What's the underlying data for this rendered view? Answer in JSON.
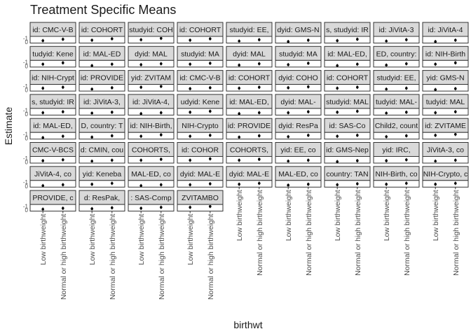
{
  "chart_data": {
    "type": "scatter",
    "title": "Treatment Specific Means",
    "xlabel": "birthwt",
    "ylabel": "Estimate",
    "categories": [
      "Low birthweight",
      "Normal or high birthweight"
    ],
    "y_tick_labels": [
      "-1",
      "0"
    ],
    "grid": false,
    "legend": "none",
    "facet_rows": 8,
    "facet_cols": 9,
    "panels": [
      {
        "strip": "id: CMC-V-B",
        "values": [
          -0.7,
          -0.4
        ]
      },
      {
        "strip": "id: COHORT",
        "values": [
          -0.6,
          -0.3
        ]
      },
      {
        "strip": "studyid: COH",
        "values": [
          -0.5,
          -0.2
        ]
      },
      {
        "strip": "id: COHORT",
        "values": [
          -0.6,
          -0.3
        ]
      },
      {
        "strip": "studyid: EE,",
        "values": [
          -0.8,
          -0.5
        ]
      },
      {
        "strip": "dyid: GMS-N",
        "values": [
          -0.9,
          -0.6
        ]
      },
      {
        "strip": "s, studyid: IR",
        "values": [
          -0.7,
          -0.4
        ]
      },
      {
        "strip": "id: JiVitA-3",
        "values": [
          -0.8,
          -0.5
        ]
      },
      {
        "strip": "id: JiVitA-4",
        "values": [
          -0.9,
          -0.6
        ]
      },
      {
        "strip": "tudyid: Kene",
        "values": [
          -0.6,
          -0.3
        ]
      },
      {
        "strip": "id: MAL-ED",
        "values": [
          -0.9,
          -0.6
        ]
      },
      {
        "strip": "dyid: MAL",
        "values": [
          -0.7,
          -0.5
        ]
      },
      {
        "strip": "studyid: MA",
        "values": [
          -0.6,
          -0.4
        ]
      },
      {
        "strip": "dyid: MAL",
        "values": [
          -0.8,
          -0.5
        ]
      },
      {
        "strip": "studyid: MA",
        "values": [
          -0.7,
          -0.4
        ]
      },
      {
        "strip": "id: MAL-ED,",
        "values": [
          -0.9,
          -0.6
        ]
      },
      {
        "strip": "ED, country:",
        "values": [
          -0.8,
          -0.5
        ]
      },
      {
        "strip": "id: NIH-Birth",
        "values": [
          -0.6,
          -0.3
        ]
      },
      {
        "strip": "id: NIH-Crypt",
        "values": [
          -0.6,
          -0.4
        ]
      },
      {
        "strip": "id: PROVIDE",
        "values": [
          -0.8,
          -0.5
        ]
      },
      {
        "strip": "yid: ZVITAM",
        "values": [
          -0.4,
          -0.2
        ]
      },
      {
        "strip": "id: CMC-V-B",
        "values": [
          -0.7,
          -0.5
        ]
      },
      {
        "strip": "id: COHORT",
        "values": [
          -0.6,
          -0.4
        ]
      },
      {
        "strip": "dyid: COHO",
        "values": [
          -0.5,
          -0.3
        ]
      },
      {
        "strip": "id: COHORT",
        "values": [
          -0.6,
          -0.4
        ]
      },
      {
        "strip": "studyid: EE,",
        "values": [
          -0.8,
          -0.6
        ]
      },
      {
        "strip": "yid: GMS-N",
        "values": [
          -0.9,
          -0.7
        ]
      },
      {
        "strip": "s, studyid: IR",
        "values": [
          -0.7,
          -0.5
        ]
      },
      {
        "strip": "id: JiVitA-3,",
        "values": [
          -0.8,
          -0.6
        ]
      },
      {
        "strip": "id: JiVitA-4,",
        "values": [
          -0.9,
          -0.7
        ]
      },
      {
        "strip": "udyid: Kene",
        "values": [
          -0.6,
          -0.4
        ]
      },
      {
        "strip": "id: MAL-ED,",
        "values": [
          -0.9,
          -0.7
        ]
      },
      {
        "strip": "dyid: MAL-",
        "values": [
          -0.7,
          -0.5
        ]
      },
      {
        "strip": "studyid: MAL",
        "values": [
          -0.6,
          -0.4
        ]
      },
      {
        "strip": "tudyid: MAL-",
        "values": [
          -0.8,
          -0.6
        ]
      },
      {
        "strip": "tudyid: MAL",
        "values": [
          -0.7,
          -0.5
        ]
      },
      {
        "strip": "id: MAL-ED,",
        "values": [
          -0.9,
          -0.6
        ]
      },
      {
        "strip": "D, country: T",
        "values": [
          -0.8,
          -0.5
        ]
      },
      {
        "strip": "id: NIH-Birth,",
        "values": [
          -0.6,
          -0.3
        ]
      },
      {
        "strip": "NIH-Crypto",
        "values": [
          -0.6,
          -0.4
        ]
      },
      {
        "strip": "id: PROVIDE",
        "values": [
          -0.8,
          -0.5
        ]
      },
      {
        "strip": "dyid: ResPa",
        "values": [
          -0.7,
          -0.4
        ]
      },
      {
        "strip": "id: SAS-Co",
        "values": [
          -0.6,
          -0.4
        ]
      },
      {
        "strip": "Child2, count",
        "values": [
          -0.7,
          -0.5
        ]
      },
      {
        "strip": "id: ZVITAME",
        "values": [
          -0.4,
          -0.2
        ]
      },
      {
        "strip": "CMC-V-BCS",
        "values": [
          -0.7,
          -0.5
        ]
      },
      {
        "strip": "d: CMIN, cou",
        "values": [
          -0.8,
          -0.6
        ]
      },
      {
        "strip": "COHORTS,",
        "values": [
          -0.6,
          -0.4
        ]
      },
      {
        "strip": "id: COHOR",
        "values": [
          -0.6,
          -0.3
        ]
      },
      {
        "strip": "COHORTS,",
        "values": [
          -0.6,
          -0.4
        ]
      },
      {
        "strip": "yid: EE, co",
        "values": [
          -0.8,
          -0.6
        ]
      },
      {
        "strip": "id: GMS-Nep",
        "values": [
          -0.9,
          -0.7
        ]
      },
      {
        "strip": "yid: IRC,",
        "values": [
          -0.7,
          -0.5
        ]
      },
      {
        "strip": "JiVitA-3, co",
        "values": [
          -0.8,
          -0.6
        ]
      },
      {
        "strip": "JiVitA-4, co",
        "values": [
          -0.9,
          -0.7
        ]
      },
      {
        "strip": "yid: Keneba",
        "values": [
          -0.6,
          -0.4
        ]
      },
      {
        "strip": "MAL-ED, co",
        "values": [
          -0.9,
          -0.7
        ]
      },
      {
        "strip": "dyid: MAL-E",
        "values": [
          -0.7,
          -0.5
        ]
      },
      {
        "strip": "dyid: MAL-E",
        "values": [
          -0.6,
          -0.4
        ]
      },
      {
        "strip": "MAL-ED, co",
        "values": [
          -0.8,
          -0.6
        ]
      },
      {
        "strip": "country: TAN",
        "values": [
          -0.7,
          -0.5
        ]
      },
      {
        "strip": "NIH-Birth, co",
        "values": [
          -0.6,
          -0.4
        ]
      },
      {
        "strip": "NIH-Crypto, c",
        "values": [
          -0.6,
          -0.4
        ]
      },
      {
        "strip": "PROVIDE, c",
        "values": [
          -0.8,
          -0.6
        ]
      },
      {
        "strip": "d: ResPak,",
        "values": [
          -0.7,
          -0.5
        ]
      },
      {
        "strip": ": SAS-Comp",
        "values": [
          -0.6,
          -0.4
        ]
      },
      {
        "strip": "ZVITAMBO",
        "values": [
          -0.4,
          -0.2
        ]
      }
    ]
  }
}
